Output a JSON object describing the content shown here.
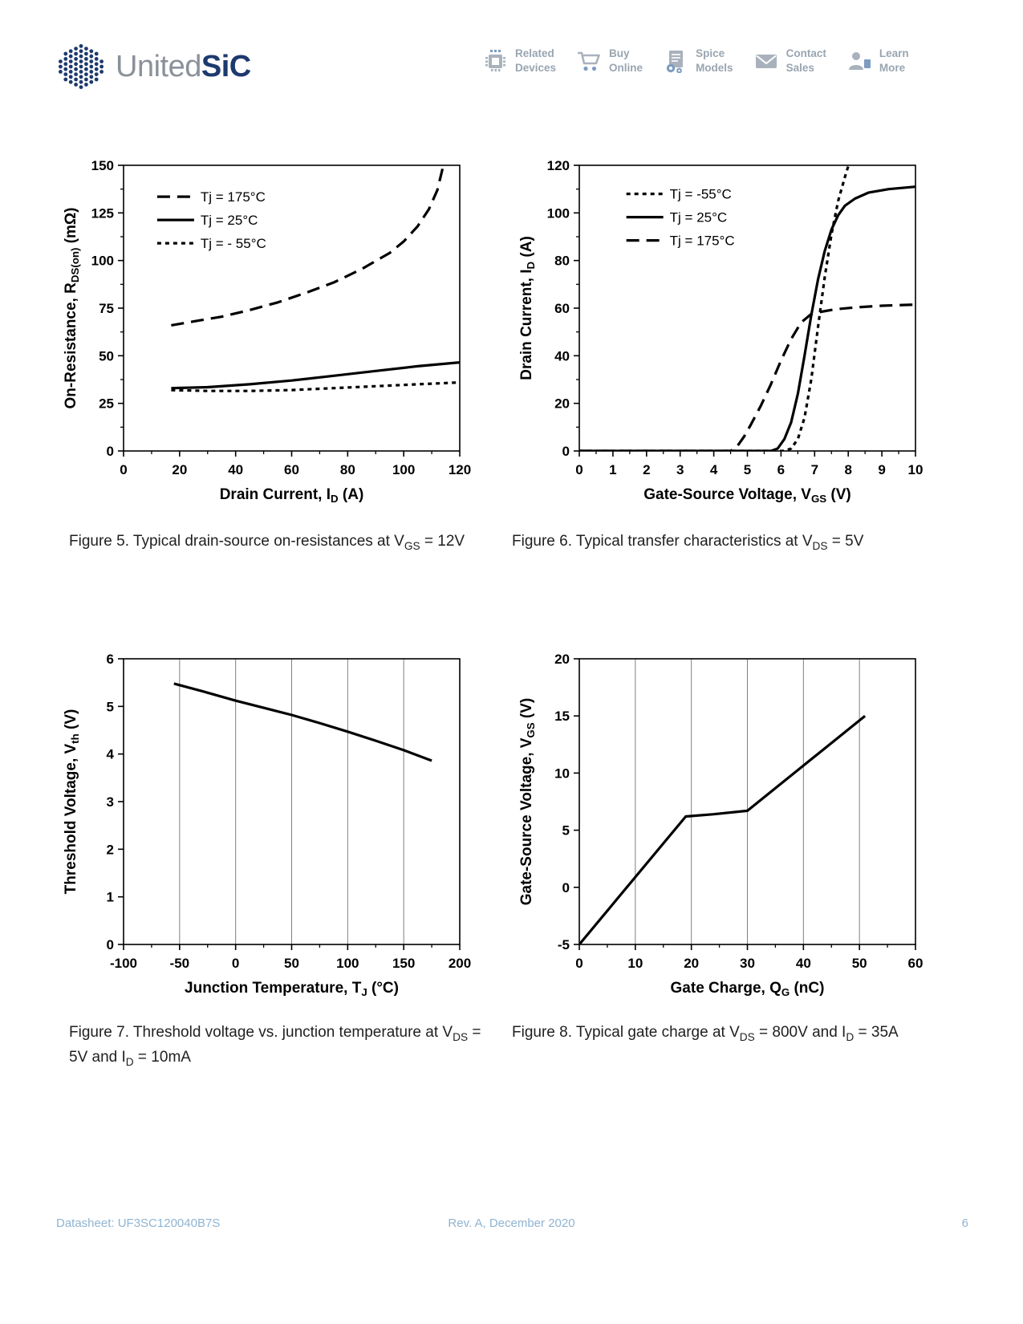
{
  "header": {
    "logo": {
      "united": "United",
      "sic": "SiC"
    },
    "nav": [
      {
        "line1": "Related",
        "line2": "Devices",
        "icon": "chip-icon"
      },
      {
        "line1": "Buy",
        "line2": "Online",
        "icon": "cart-icon"
      },
      {
        "line1": "Spice",
        "line2": "Models",
        "icon": "gear-document-icon"
      },
      {
        "line1": "Contact",
        "line2": "Sales",
        "icon": "envelope-icon"
      },
      {
        "line1": "Learn",
        "line2": "More",
        "icon": "person-icon"
      }
    ]
  },
  "footer": {
    "left": "Datasheet: UF3SC120040B7S",
    "center": "Rev. A, December 2020",
    "page_number": "6"
  },
  "colors": {
    "accent_navy": "#1d3a6e",
    "logo_gray": "#8b919a",
    "nav_gray": "#99a5b1",
    "nav_blue": "#7e9cc0",
    "footer_blue": "#8fb4d2",
    "line_black": "#000000",
    "grid_gray": "#7f7f7f"
  },
  "chart_data": [
    {
      "id": "fig5",
      "type": "line",
      "caption_text": "Figure 5. Typical drain-source on-resistances at VGS = 12V",
      "caption": [
        {
          "t": "Figure 5. Typical drain-source on-resistances at V"
        },
        {
          "t": "GS",
          "sub": true
        },
        {
          "t": " = 12V"
        }
      ],
      "xlabel": [
        {
          "t": "Drain Current, I"
        },
        {
          "t": "D",
          "sub": true
        },
        {
          "t": " (A)"
        }
      ],
      "ylabel": [
        {
          "t": "On-Resistance, R"
        },
        {
          "t": "DS(on)",
          "sub": true
        },
        {
          "t": " (mΩ)"
        }
      ],
      "xlim": [
        0,
        120
      ],
      "xticks": [
        0,
        20,
        40,
        60,
        80,
        100,
        120
      ],
      "minor_x": 10,
      "ylim": [
        0,
        150
      ],
      "yticks": [
        0,
        25,
        50,
        75,
        100,
        125,
        150
      ],
      "minor_y": 12.5,
      "grid_x": false,
      "legend": {
        "x": 0.1,
        "y": 0.11,
        "items": [
          {
            "label": "Tj = 175°C",
            "style": "longdash"
          },
          {
            "label": "Tj = 25°C",
            "style": "solid"
          },
          {
            "label": "Tj = - 55°C",
            "style": "shortdash"
          }
        ]
      },
      "series": [
        {
          "name": "Tj = 175°C",
          "style": "longdash",
          "points": [
            [
              17,
              66
            ],
            [
              25,
              68
            ],
            [
              35,
              70.5
            ],
            [
              45,
              74
            ],
            [
              55,
              78
            ],
            [
              65,
              83
            ],
            [
              75,
              88.5
            ],
            [
              85,
              95.5
            ],
            [
              95,
              104
            ],
            [
              100,
              110
            ],
            [
              105,
              118
            ],
            [
              109,
              127
            ],
            [
              112,
              137
            ],
            [
              114,
              149
            ]
          ]
        },
        {
          "name": "Tj = 25°C",
          "style": "solid",
          "points": [
            [
              17,
              33
            ],
            [
              30,
              33.5
            ],
            [
              45,
              35
            ],
            [
              60,
              37
            ],
            [
              75,
              39.5
            ],
            [
              90,
              42
            ],
            [
              105,
              44.5
            ],
            [
              120,
              46.5
            ]
          ]
        },
        {
          "name": "Tj = -55°C",
          "style": "shortdash",
          "points": [
            [
              17,
              32
            ],
            [
              30,
              31.5
            ],
            [
              45,
              31.5
            ],
            [
              60,
              32
            ],
            [
              75,
              33
            ],
            [
              90,
              34
            ],
            [
              105,
              35
            ],
            [
              120,
              36
            ]
          ]
        }
      ]
    },
    {
      "id": "fig6",
      "type": "line",
      "caption_text": "Figure 6. Typical transfer characteristics at VDS = 5V",
      "caption": [
        {
          "t": "Figure 6. Typical transfer characteristics at V"
        },
        {
          "t": "DS",
          "sub": true
        },
        {
          "t": " = 5V"
        }
      ],
      "xlabel": [
        {
          "t": "Gate-Source Voltage, V"
        },
        {
          "t": "GS",
          "sub": true
        },
        {
          "t": " (V)"
        }
      ],
      "ylabel": [
        {
          "t": "Drain Current, I"
        },
        {
          "t": "D",
          "sub": true
        },
        {
          "t": " (A)"
        }
      ],
      "xlim": [
        0,
        10
      ],
      "xticks": [
        0,
        1,
        2,
        3,
        4,
        5,
        6,
        7,
        8,
        9,
        10
      ],
      "minor_x": 0.5,
      "ylim": [
        0,
        120
      ],
      "yticks": [
        0,
        20,
        40,
        60,
        80,
        100,
        120
      ],
      "minor_y": 10,
      "grid_x": false,
      "legend": {
        "x": 0.14,
        "y": 0.1,
        "items": [
          {
            "label": "Tj = -55°C",
            "style": "shortdash"
          },
          {
            "label": "Tj = 25°C",
            "style": "solid"
          },
          {
            "label": "Tj = 175°C",
            "style": "longdash"
          }
        ]
      },
      "series": [
        {
          "name": "Tj = -55°C",
          "style": "shortdash",
          "points": [
            [
              0,
              0
            ],
            [
              6.1,
              0
            ],
            [
              6.3,
              1
            ],
            [
              6.5,
              5
            ],
            [
              6.7,
              14
            ],
            [
              6.9,
              30
            ],
            [
              7.1,
              52
            ],
            [
              7.3,
              73
            ],
            [
              7.5,
              91
            ],
            [
              7.7,
              105
            ],
            [
              7.9,
              115
            ],
            [
              8.05,
              122
            ],
            [
              8.2,
              128
            ]
          ]
        },
        {
          "name": "Tj = 25°C",
          "style": "solid",
          "points": [
            [
              0,
              0
            ],
            [
              5.7,
              0
            ],
            [
              5.9,
              1
            ],
            [
              6.1,
              5
            ],
            [
              6.3,
              12
            ],
            [
              6.5,
              24
            ],
            [
              6.7,
              40
            ],
            [
              6.9,
              57
            ],
            [
              7.1,
              72
            ],
            [
              7.3,
              84
            ],
            [
              7.5,
              93
            ],
            [
              7.7,
              99
            ],
            [
              7.9,
              103
            ],
            [
              8.2,
              106
            ],
            [
              8.6,
              108.5
            ],
            [
              9.2,
              110
            ],
            [
              10,
              111
            ]
          ]
        },
        {
          "name": "Tj = 175°C",
          "style": "longdash",
          "points": [
            [
              0,
              0
            ],
            [
              4.5,
              0
            ],
            [
              4.7,
              2
            ],
            [
              4.9,
              6
            ],
            [
              5.1,
              11
            ],
            [
              5.4,
              19
            ],
            [
              5.7,
              28
            ],
            [
              6,
              38
            ],
            [
              6.3,
              47
            ],
            [
              6.6,
              54
            ],
            [
              6.9,
              57.5
            ],
            [
              7.2,
              58.5
            ],
            [
              7.6,
              59.5
            ],
            [
              8.2,
              60.3
            ],
            [
              9,
              61
            ],
            [
              10,
              61.5
            ]
          ]
        }
      ]
    },
    {
      "id": "fig7",
      "type": "line",
      "caption_text": "Figure 7. Threshold voltage vs. junction temperature at VDS = 5V and ID = 10mA",
      "caption": [
        {
          "t": "Figure 7. Threshold voltage vs. junction temperature at V"
        },
        {
          "t": "DS",
          "sub": true
        },
        {
          "t": " = 5V and I"
        },
        {
          "t": "D",
          "sub": true
        },
        {
          "t": " = 10mA"
        }
      ],
      "xlabel": [
        {
          "t": "Junction Temperature, T"
        },
        {
          "t": "J",
          "sub": true
        },
        {
          "t": " (°C)"
        }
      ],
      "ylabel": [
        {
          "t": "Threshold Voltage, V"
        },
        {
          "t": "th",
          "sub": true
        },
        {
          "t": " (V)"
        }
      ],
      "xlim": [
        -100,
        200
      ],
      "xticks": [
        -100,
        -50,
        0,
        50,
        100,
        150,
        200
      ],
      "minor_x": 25,
      "ylim": [
        0,
        6
      ],
      "yticks": [
        0,
        1,
        2,
        3,
        4,
        5,
        6
      ],
      "minor_y": null,
      "grid_x": true,
      "legend": null,
      "series": [
        {
          "name": "Vth",
          "style": "solid",
          "points": [
            [
              -55,
              5.48
            ],
            [
              -30,
              5.32
            ],
            [
              0,
              5.12
            ],
            [
              25,
              4.97
            ],
            [
              50,
              4.82
            ],
            [
              75,
              4.65
            ],
            [
              100,
              4.47
            ],
            [
              125,
              4.28
            ],
            [
              150,
              4.08
            ],
            [
              175,
              3.86
            ]
          ]
        }
      ]
    },
    {
      "id": "fig8",
      "type": "line",
      "caption_text": "Figure 8. Typical gate charge at VDS = 800V and ID = 35A",
      "caption": [
        {
          "t": "Figure 8. Typical gate charge at V"
        },
        {
          "t": "DS",
          "sub": true
        },
        {
          "t": " = 800V and I"
        },
        {
          "t": "D",
          "sub": true
        },
        {
          "t": " = 35A"
        }
      ],
      "xlabel": [
        {
          "t": "Gate Charge, Q"
        },
        {
          "t": "G",
          "sub": true
        },
        {
          "t": " (nC)"
        }
      ],
      "ylabel": [
        {
          "t": "Gate-Source Voltage, V"
        },
        {
          "t": "GS",
          "sub": true
        },
        {
          "t": " (V)"
        }
      ],
      "xlim": [
        0,
        60
      ],
      "xticks": [
        0,
        10,
        20,
        30,
        40,
        50,
        60
      ],
      "minor_x": 5,
      "ylim": [
        -5,
        20
      ],
      "yticks": [
        -5,
        0,
        5,
        10,
        15,
        20
      ],
      "minor_y": null,
      "grid_x": true,
      "legend": null,
      "series": [
        {
          "name": "VGS",
          "style": "solid",
          "points": [
            [
              0,
              -5
            ],
            [
              19,
              6.2
            ],
            [
              24,
              6.4
            ],
            [
              30,
              6.7
            ],
            [
              51,
              15
            ]
          ]
        }
      ]
    }
  ]
}
